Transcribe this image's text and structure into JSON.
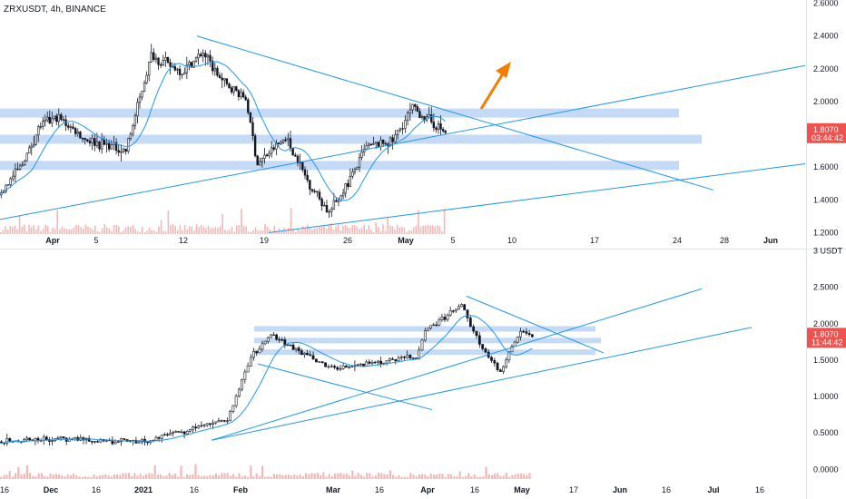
{
  "title": "ZRXUSDT, 4h, BINANCE",
  "colors": {
    "up": "#26a69a",
    "down": "#ef5350",
    "candle": "#131722",
    "trendline": "#2196f3",
    "zone": "#bbd4f5",
    "ma": "#2196f3",
    "arrow": "#f57c00",
    "price_tag": "#ef5350",
    "volume": "#f3b8b6"
  },
  "chart_data": [
    {
      "type": "candlestick",
      "timeframe": "4h",
      "y_axis": {
        "unit": "USDT",
        "ticks": [
          "2.6000",
          "2.4000",
          "2.2000",
          "2.0000",
          "1.8000",
          "1.6000",
          "1.4000",
          "1.2000"
        ],
        "range": [
          1.18,
          2.62
        ]
      },
      "x_axis": {
        "ticks": [
          "Apr",
          "5",
          "12",
          "19",
          "26",
          "May",
          "5",
          "10",
          "17",
          "24",
          "28",
          "Jun"
        ]
      },
      "last_price": "1.8070",
      "countdown": "03:44:42",
      "price_path": [
        {
          "t": "Mar 28",
          "price": 1.43
        },
        {
          "t": "Mar 31",
          "price": 1.62
        },
        {
          "t": "Apr 1",
          "price": 1.86
        },
        {
          "t": "Apr 3",
          "price": 1.9
        },
        {
          "t": "Apr 5",
          "price": 1.77
        },
        {
          "t": "Apr 8",
          "price": 1.7
        },
        {
          "t": "Apr 10",
          "price": 2.28
        },
        {
          "t": "Apr 12",
          "price": 2.18
        },
        {
          "t": "Apr 14",
          "price": 2.3
        },
        {
          "t": "Apr 16",
          "price": 2.12
        },
        {
          "t": "Apr 18",
          "price": 2.02
        },
        {
          "t": "Apr 19",
          "price": 1.62
        },
        {
          "t": "Apr 21",
          "price": 1.78
        },
        {
          "t": "Apr 23",
          "price": 1.52
        },
        {
          "t": "Apr 25",
          "price": 1.32
        },
        {
          "t": "Apr 27",
          "price": 1.48
        },
        {
          "t": "Apr 29",
          "price": 1.72
        },
        {
          "t": "May 2",
          "price": 1.76
        },
        {
          "t": "May 4",
          "price": 1.96
        },
        {
          "t": "May 5",
          "price": 1.81
        }
      ],
      "horizontal_zones": [
        1.93,
        1.77,
        1.61
      ],
      "trendlines": [
        "descending resistance",
        "ascending support",
        "ascending channel line"
      ],
      "annotation": "orange arrow pointing up"
    },
    {
      "type": "candlestick",
      "timeframe": "4h",
      "y_axis": {
        "unit": "USDT",
        "ticks": [
          "3",
          "2.5000",
          "2.0000",
          "1.5000",
          "1.0000",
          "0.5000",
          "0.0000"
        ],
        "range": [
          -0.12,
          3.02
        ]
      },
      "x_axis": {
        "ticks": [
          "16",
          "Dec",
          "16",
          "2021",
          "16",
          "Feb",
          "Mar",
          "16",
          "Apr",
          "16",
          "May",
          "17",
          "Jun",
          "16",
          "Jul",
          "16"
        ]
      },
      "last_price": "1.8070",
      "countdown": "11:44:42",
      "price_path": [
        {
          "t": "Nov 16",
          "price": 0.38
        },
        {
          "t": "Dec 1",
          "price": 0.42
        },
        {
          "t": "Dec 16",
          "price": 0.4
        },
        {
          "t": "Jan 1",
          "price": 0.38
        },
        {
          "t": "Jan 16",
          "price": 0.55
        },
        {
          "t": "Jan 28",
          "price": 0.68
        },
        {
          "t": "Feb 5",
          "price": 1.55
        },
        {
          "t": "Feb 10",
          "price": 1.85
        },
        {
          "t": "Feb 20",
          "price": 1.55
        },
        {
          "t": "Mar 1",
          "price": 1.38
        },
        {
          "t": "Mar 16",
          "price": 1.48
        },
        {
          "t": "Mar 28",
          "price": 1.55
        },
        {
          "t": "Apr 1",
          "price": 1.9
        },
        {
          "t": "Apr 12",
          "price": 2.25
        },
        {
          "t": "Apr 20",
          "price": 1.72
        },
        {
          "t": "Apr 26",
          "price": 1.32
        },
        {
          "t": "May 3",
          "price": 1.93
        },
        {
          "t": "May 5",
          "price": 1.81
        }
      ],
      "horizontal_zones": [
        1.93,
        1.77,
        1.61
      ],
      "trendlines": [
        "descending resistance",
        "ascending channel upper",
        "ascending channel lower",
        "descending line Feb–Mar"
      ]
    }
  ]
}
